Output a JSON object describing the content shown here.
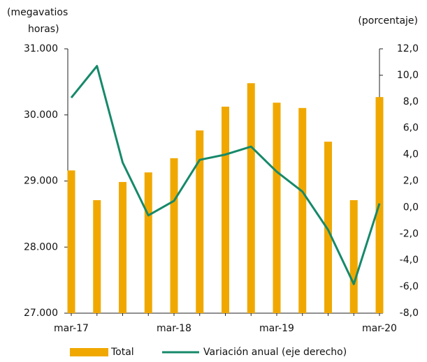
{
  "chart_data": {
    "type": "bar-line",
    "ylabel": [
      "(megavatios",
      "horas)"
    ],
    "y2label": "(porcentaje)",
    "categories": [
      "mar-17",
      null,
      null,
      null,
      "mar-18",
      null,
      null,
      null,
      "mar-19",
      null,
      null,
      null,
      "mar-20"
    ],
    "series": [
      {
        "name": "Total",
        "type": "bar",
        "color": "#f0a800",
        "values": [
          29160,
          28710,
          28985,
          29130,
          29345,
          29765,
          30125,
          30480,
          30185,
          30105,
          29595,
          28710,
          30270
        ]
      },
      {
        "name": "Variación anual (eje derecho)",
        "type": "line",
        "axis": "y2",
        "color": "#16896a",
        "values": [
          8.3,
          10.7,
          3.4,
          -0.6,
          0.5,
          3.6,
          4.0,
          4.6,
          2.7,
          1.2,
          -1.7,
          -5.8,
          0.3
        ]
      }
    ],
    "ylim": [
      27000,
      31000
    ],
    "yticks": [
      {
        "value": 27000,
        "label": "27.000"
      },
      {
        "value": 28000,
        "label": "28.000"
      },
      {
        "value": 29000,
        "label": "29.000"
      },
      {
        "value": 30000,
        "label": "30.000"
      },
      {
        "value": 31000,
        "label": "31.000"
      }
    ],
    "y2lim": [
      -8,
      12
    ],
    "y2ticks": [
      {
        "value": -8,
        "label": "-8,0"
      },
      {
        "value": -6,
        "label": "-6,0"
      },
      {
        "value": -4,
        "label": "-4,0"
      },
      {
        "value": -2,
        "label": "-2,0"
      },
      {
        "value": 0,
        "label": "0,0"
      },
      {
        "value": 2,
        "label": "2,0"
      },
      {
        "value": 4,
        "label": "4,0"
      },
      {
        "value": 6,
        "label": "6,0"
      },
      {
        "value": 8,
        "label": "8,0"
      },
      {
        "value": 10,
        "label": "10,0"
      },
      {
        "value": 12,
        "label": "12,0"
      }
    ],
    "legend": "bottom"
  }
}
